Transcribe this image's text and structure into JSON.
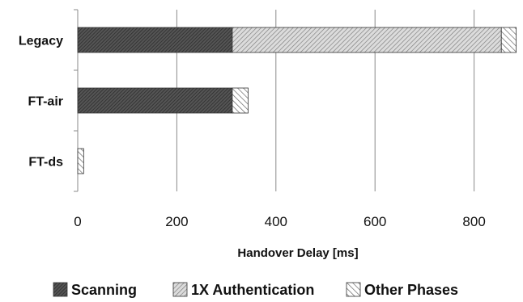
{
  "chart_data": {
    "type": "bar",
    "orientation": "horizontal",
    "stacked": true,
    "categories": [
      "Legacy",
      "FT-air",
      "FT-ds"
    ],
    "series": [
      {
        "name": "Scanning",
        "values": [
          312,
          312,
          0
        ],
        "fill": "#4a4a4a",
        "pattern": "dense-diagonal"
      },
      {
        "name": "1X Authentication",
        "values": [
          543,
          0,
          0
        ],
        "fill": "#c8c8c8",
        "pattern": "hatch-diagonal"
      },
      {
        "name": "Other Phases",
        "values": [
          30,
          32,
          12
        ],
        "fill": "#ffffff",
        "pattern": "sparse-diagonal"
      }
    ],
    "xlabel": "Handover Delay [ms]",
    "ylabel": "",
    "title": "",
    "xlim": [
      0,
      900
    ],
    "xticks": [
      0,
      200,
      400,
      600,
      800
    ],
    "grid": "vertical",
    "legend": "bottom"
  }
}
